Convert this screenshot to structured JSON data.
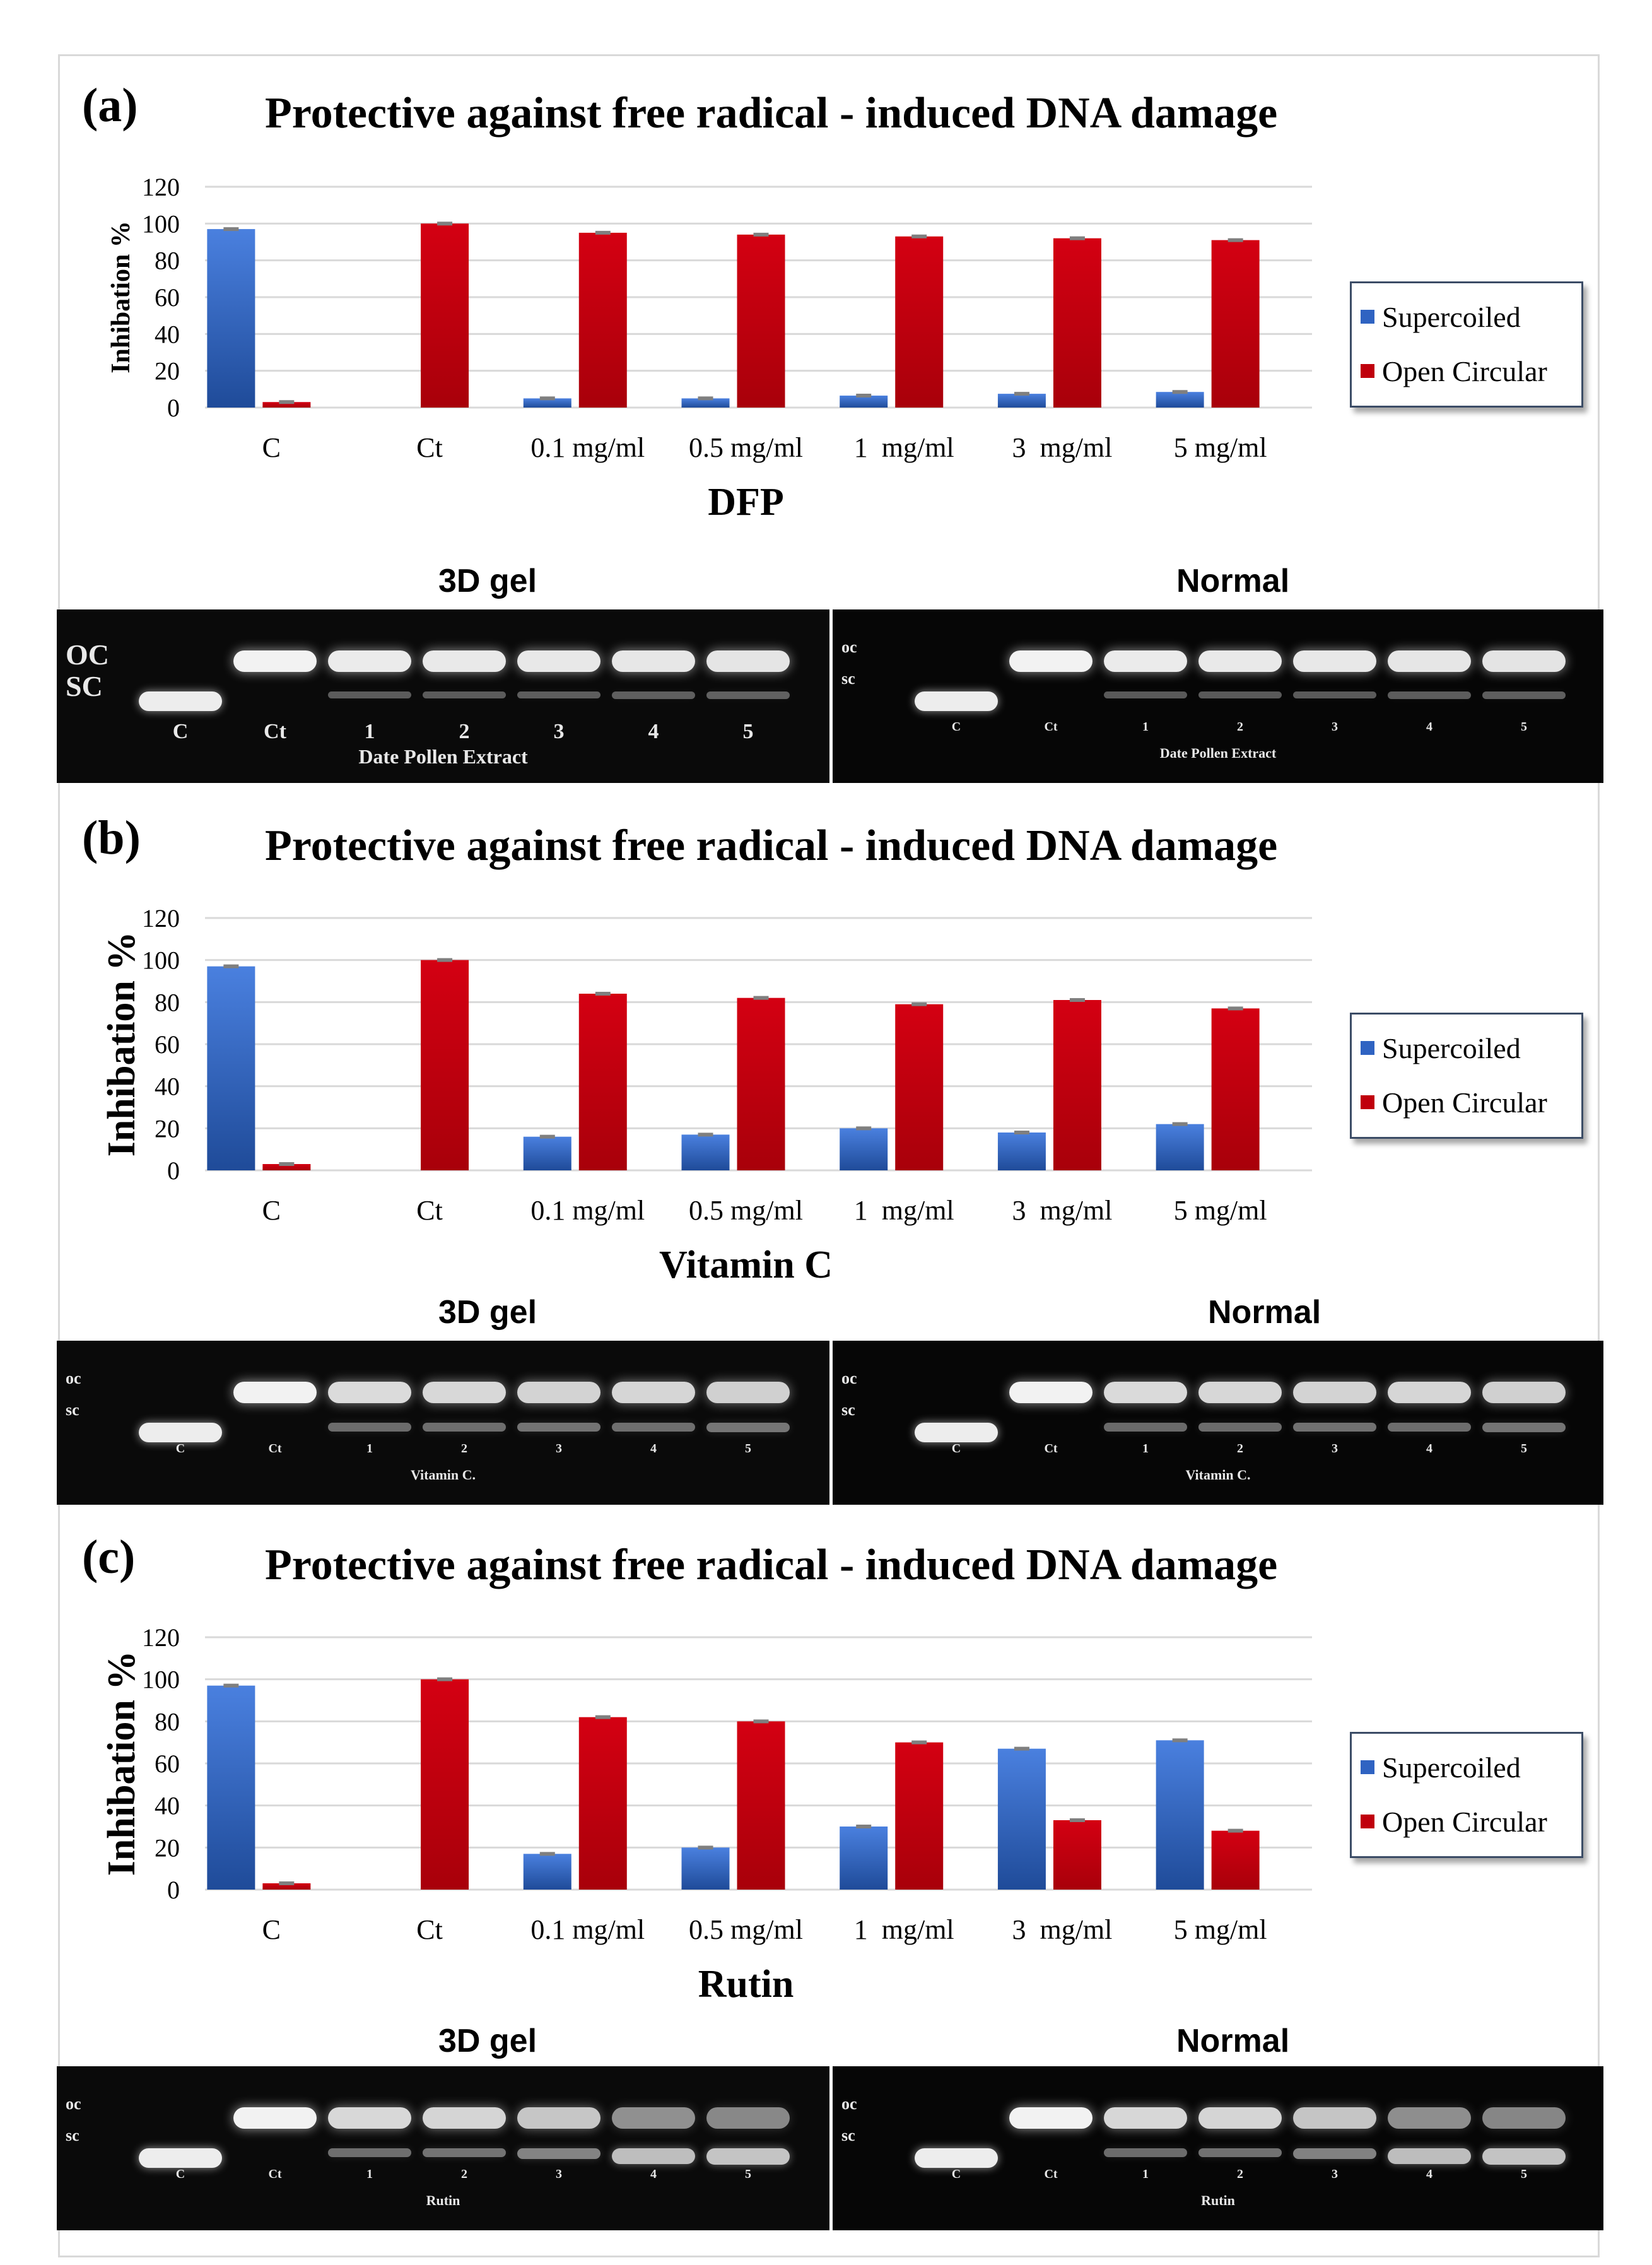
{
  "colors": {
    "supercoiled": "#2f63c2",
    "open_circular": "#c0000c",
    "grid": "#d9d9d9",
    "axis_text": "#595959"
  },
  "panels": [
    {
      "label": "(a)",
      "title": "Protective against free radical - induced DNA damage",
      "gel_3d_caption": "3D gel",
      "gel_normal_caption": "Normal",
      "gel_3d": {
        "oc": "OC",
        "sc": "SC",
        "lanes": [
          "C",
          "Ct",
          "1",
          "2",
          "3",
          "4",
          "5"
        ],
        "extract": "Date Pollen Extract"
      },
      "gel_normal": {
        "oc": "oc",
        "sc": "sc",
        "lanes": [
          "C",
          "Ct",
          "1",
          "2",
          "3",
          "4",
          "5"
        ],
        "extract": "Date Pollen Extract"
      }
    },
    {
      "label": "(b)",
      "title": "Protective against free radical - induced DNA damage",
      "gel_3d_caption": "3D gel",
      "gel_normal_caption": "Normal",
      "gel_3d": {
        "oc": "oc",
        "sc": "sc",
        "lanes": [
          "C",
          "Ct",
          "1",
          "2",
          "3",
          "4",
          "5"
        ],
        "extract": "Vitamin C."
      },
      "gel_normal": {
        "oc": "oc",
        "sc": "sc",
        "lanes": [
          "C",
          "Ct",
          "1",
          "2",
          "3",
          "4",
          "5"
        ],
        "extract": "Vitamin C."
      }
    },
    {
      "label": "(c)",
      "title": "Protective against free radical - induced DNA damage",
      "gel_3d_caption": "3D gel",
      "gel_normal_caption": "Normal",
      "gel_3d": {
        "oc": "oc",
        "sc": "sc",
        "lanes": [
          "C",
          "Ct",
          "1",
          "2",
          "3",
          "4",
          "5"
        ],
        "extract": "Rutin"
      },
      "gel_normal": {
        "oc": "oc",
        "sc": "sc",
        "lanes": [
          "C",
          "Ct",
          "1",
          "2",
          "3",
          "4",
          "5"
        ],
        "extract": "Rutin"
      }
    }
  ],
  "chart_data": [
    {
      "type": "bar",
      "title": "Protective against free radical - induced DNA damage",
      "xlabel": "DFP",
      "ylabel": "Inhibation %",
      "ylim": [
        0,
        120
      ],
      "yticks": [
        0,
        20,
        40,
        60,
        80,
        100,
        120
      ],
      "grid": true,
      "legend_position": "right",
      "categories": [
        "C",
        "Ct",
        "0.1 mg/ml",
        "0.5 mg/ml",
        "1  mg/ml",
        "3  mg/ml",
        "5 mg/ml"
      ],
      "series": [
        {
          "name": "Supercoiled",
          "values": [
            97,
            0,
            5,
            5,
            6.5,
            7.5,
            8.5
          ]
        },
        {
          "name": "Open Circular",
          "values": [
            3,
            100,
            95,
            94,
            93,
            92,
            91
          ]
        }
      ]
    },
    {
      "type": "bar",
      "title": "Protective against free radical - induced DNA damage",
      "xlabel": "Vitamin C",
      "ylabel": "Inhibation %",
      "ylim": [
        0,
        120
      ],
      "yticks": [
        0,
        20,
        40,
        60,
        80,
        100,
        120
      ],
      "grid": true,
      "legend_position": "right",
      "categories": [
        "C",
        "Ct",
        "0.1 mg/ml",
        "0.5 mg/ml",
        "1  mg/ml",
        "3  mg/ml",
        "5 mg/ml"
      ],
      "series": [
        {
          "name": "Supercoiled",
          "values": [
            97,
            0,
            16,
            17,
            20,
            18,
            22
          ]
        },
        {
          "name": "Open Circular",
          "values": [
            3,
            100,
            84,
            82,
            79,
            81,
            77
          ]
        }
      ]
    },
    {
      "type": "bar",
      "title": "Protective against free radical - induced DNA damage",
      "xlabel": "Rutin",
      "ylabel": "Inhibation %",
      "ylim": [
        0,
        120
      ],
      "yticks": [
        0,
        20,
        40,
        60,
        80,
        100,
        120
      ],
      "grid": true,
      "legend_position": "right",
      "categories": [
        "C",
        "Ct",
        "0.1 mg/ml",
        "0.5 mg/ml",
        "1  mg/ml",
        "3  mg/ml",
        "5 mg/ml"
      ],
      "series": [
        {
          "name": "Supercoiled",
          "values": [
            97,
            0,
            17,
            20,
            30,
            67,
            71
          ]
        },
        {
          "name": "Open Circular",
          "values": [
            3,
            100,
            82,
            80,
            70,
            33,
            28
          ]
        }
      ]
    }
  ]
}
